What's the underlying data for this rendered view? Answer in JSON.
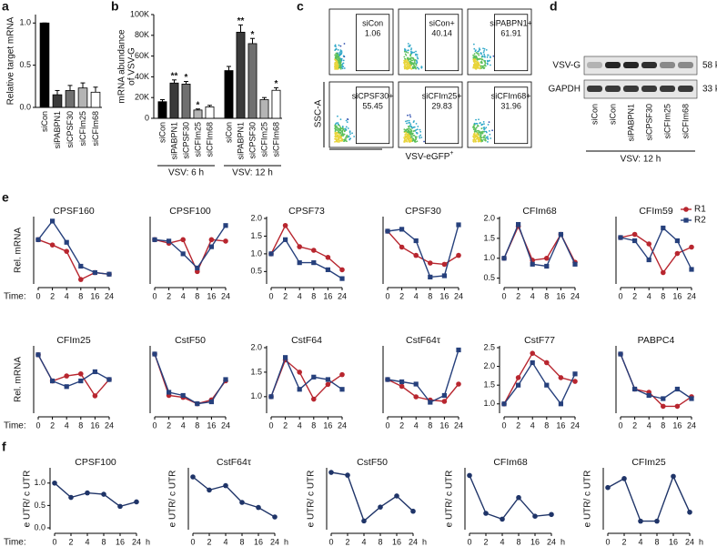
{
  "chart_data": [
    {
      "type": "bar",
      "panel_label": "a",
      "ylabel": "Relative target mRNA",
      "categories": [
        "siCon",
        "siPABPN1",
        "siCPSF30",
        "siCFIm25",
        "siCFIm68"
      ],
      "values": [
        1.0,
        0.15,
        0.2,
        0.23,
        0.18
      ],
      "errors": [
        0,
        0.05,
        0.06,
        0.06,
        0.06
      ],
      "colors": [
        "#000000",
        "#3a3a3a",
        "#707070",
        "#b4b4b4",
        "#ffffff"
      ],
      "ylim": [
        0,
        1.1
      ],
      "yticks": [
        {
          "value": 0,
          "label": "0.0"
        },
        {
          "value": 0.5,
          "label": "0.5"
        },
        {
          "value": 1,
          "label": "1.0"
        }
      ]
    },
    {
      "type": "bar",
      "panel_label": "b",
      "ylabel": [
        "mRNA abundance",
        "of VSV-G"
      ],
      "categories": [
        "siCon",
        "siPABPN1",
        "siCPSF30",
        "siCFIm25",
        "siCFIm68"
      ],
      "colors": [
        "#000000",
        "#3a3a3a",
        "#707070",
        "#b4b4b4",
        "#ffffff"
      ],
      "groups": [
        {
          "name": "VSV: 6 h",
          "values": [
            16000,
            34000,
            33000,
            8000,
            11000
          ],
          "errors": [
            2000,
            3000,
            2500,
            1000,
            1500
          ],
          "annotations": [
            null,
            "**",
            "*",
            "*",
            null
          ]
        },
        {
          "name": "VSV: 12 h",
          "values": [
            46000,
            83000,
            72000,
            18000,
            27000
          ],
          "errors": [
            4000,
            7000,
            5000,
            2000,
            2500
          ],
          "annotations": [
            null,
            "**",
            "*",
            null,
            "*"
          ]
        }
      ],
      "ylim": [
        0,
        100000
      ],
      "yticks": [
        0,
        {
          "value": 20000,
          "label": "20K"
        },
        {
          "value": 40000,
          "label": "40K"
        },
        {
          "value": 60000,
          "label": "60K"
        },
        {
          "value": 80000,
          "label": "80K"
        },
        {
          "value": 100000,
          "label": "100K"
        }
      ]
    },
    {
      "type": "line",
      "panel_label": "e",
      "ylabel": "Rel. mRNA",
      "time_label": "Time:",
      "categories": [
        "0",
        "2",
        "4",
        "8",
        "16",
        "24"
      ],
      "series": [
        {
          "name": "R1",
          "color": "#b8262f",
          "marker": "circle"
        },
        {
          "name": "R2",
          "color": "#26407c",
          "marker": "square"
        }
      ],
      "panels": [
        {
          "title": "CPSF160",
          "ylim": [
            0.2,
            1.4
          ],
          "values": [
            [
              1.0,
              0.9,
              0.78,
              0.25,
              0.38,
              0.35
            ],
            [
              1.0,
              1.35,
              0.95,
              0.5,
              0.38,
              0.35
            ]
          ]
        },
        {
          "title": "CPSF100",
          "ylim": [
            0.4,
            1.3
          ],
          "values": [
            [
              1.0,
              0.95,
              1.0,
              0.55,
              1.0,
              0.98
            ],
            [
              1.0,
              0.98,
              0.8,
              0.6,
              0.9,
              1.2
            ]
          ]
        },
        {
          "title": "CPSF73",
          "ylim": [
            0.2,
            2.0
          ],
          "yticks": [
            {
              "value": 0.5,
              "label": "0.5"
            },
            {
              "value": 1,
              "label": "1.0"
            },
            {
              "value": 1.5,
              "label": "1.5"
            },
            {
              "value": 2,
              "label": "2.0"
            }
          ],
          "values": [
            [
              1.0,
              1.8,
              1.2,
              1.1,
              0.9,
              0.55
            ],
            [
              1.0,
              1.4,
              0.75,
              0.75,
              0.55,
              0.3
            ]
          ]
        },
        {
          "title": "CPSF30",
          "ylim": [
            0.2,
            1.2
          ],
          "values": [
            [
              1.0,
              0.75,
              0.62,
              0.5,
              0.48,
              0.62
            ],
            [
              1.0,
              1.03,
              0.85,
              0.28,
              0.3,
              1.1
            ]
          ]
        },
        {
          "title": "CFIm68",
          "ylim": [
            0.4,
            2.0
          ],
          "yticks": [
            {
              "value": 0.5,
              "label": "0.5"
            },
            {
              "value": 1,
              "label": "1.0"
            },
            {
              "value": 1.5,
              "label": "1.5"
            },
            {
              "value": 2,
              "label": "2.0"
            }
          ],
          "values": [
            [
              1.0,
              1.8,
              0.95,
              1.0,
              1.6,
              0.9
            ],
            [
              1.0,
              1.85,
              0.85,
              0.8,
              1.6,
              0.85
            ]
          ]
        },
        {
          "title": "CFIm59",
          "ylim": [
            0.3,
            1.3
          ],
          "legend": "upper right",
          "values": [
            [
              1.0,
              1.05,
              0.9,
              0.45,
              0.75,
              0.85
            ],
            [
              1.0,
              0.95,
              0.65,
              1.15,
              0.95,
              0.5
            ]
          ]
        },
        {
          "title": "CFIm25",
          "ylim": [
            0.2,
            1.1
          ],
          "values": [
            [
              1.0,
              0.63,
              0.7,
              0.73,
              0.42,
              0.65
            ],
            [
              1.0,
              0.63,
              0.55,
              0.63,
              0.76,
              0.65
            ]
          ]
        },
        {
          "title": "CstF50",
          "ylim": [
            0.1,
            1.1
          ],
          "values": [
            [
              1.0,
              0.35,
              0.32,
              0.22,
              0.28,
              0.58
            ],
            [
              1.0,
              0.4,
              0.35,
              0.22,
              0.25,
              0.6
            ]
          ]
        },
        {
          "title": "CstF64",
          "ylim": [
            0.7,
            2.0
          ],
          "yticks": [
            {
              "value": 1,
              "label": "1.0"
            },
            {
              "value": 1.5,
              "label": "1.5"
            },
            {
              "value": 2,
              "label": "2.0"
            }
          ],
          "values": [
            [
              1.0,
              1.75,
              1.5,
              0.95,
              1.25,
              1.45
            ],
            [
              1.0,
              1.8,
              1.15,
              1.4,
              1.35,
              1.15
            ]
          ]
        },
        {
          "title": "CstF64τ",
          "ylim": [
            0.3,
            1.7
          ],
          "values": [
            [
              1.0,
              0.85,
              0.62,
              0.55,
              0.52,
              0.9
            ],
            [
              1.0,
              0.95,
              0.9,
              0.5,
              0.65,
              1.65
            ]
          ]
        },
        {
          "title": "CstF77",
          "ylim": [
            0.8,
            2.5
          ],
          "yticks": [
            {
              "value": 1,
              "label": "1.0"
            },
            {
              "value": 1.5,
              "label": "1.5"
            },
            {
              "value": 2,
              "label": "2.0"
            },
            {
              "value": 2.5,
              "label": "2.5"
            }
          ],
          "values": [
            [
              1.0,
              1.7,
              2.35,
              2.1,
              1.7,
              1.6
            ],
            [
              1.0,
              1.5,
              2.1,
              1.5,
              1.0,
              1.8
            ]
          ]
        },
        {
          "title": "PABPC4",
          "ylim": [
            0.1,
            1.1
          ],
          "values": [
            [
              1.0,
              0.45,
              0.4,
              0.18,
              0.18,
              0.33
            ],
            [
              1.0,
              0.45,
              0.35,
              0.3,
              0.45,
              0.3
            ]
          ]
        }
      ]
    },
    {
      "type": "line",
      "panel_label": "f",
      "ylabel": "e UTR/ c UTR",
      "time_label": "Time:",
      "unit": "h",
      "categories": [
        "0",
        "2",
        "4",
        "8",
        "16",
        "24"
      ],
      "color": "#1f3468",
      "panels": [
        {
          "title": "CPSF100",
          "ylim": [
            0,
            1.3
          ],
          "yticks": [
            {
              "value": 0,
              "label": "0.0"
            },
            {
              "value": 0.5,
              "label": "0.5"
            },
            {
              "value": 1,
              "label": "1.0"
            }
          ],
          "values": [
            1.0,
            0.68,
            0.78,
            0.75,
            0.48,
            0.58
          ]
        },
        {
          "title": "CstF64τ",
          "ylim": [
            0.3,
            1.1
          ],
          "values": [
            1.0,
            0.82,
            0.88,
            0.65,
            0.58,
            0.45
          ]
        },
        {
          "title": "CstF50",
          "ylim": [
            0.6,
            1.02
          ],
          "values": [
            1.0,
            0.98,
            0.65,
            0.75,
            0.83,
            0.72
          ]
        },
        {
          "title": "CFIm68",
          "ylim": [
            0.1,
            1.1
          ],
          "values": [
            1.0,
            0.35,
            0.25,
            0.62,
            0.3,
            0.33
          ]
        },
        {
          "title": "CFIm25",
          "ylim": [
            0.1,
            1.4
          ],
          "values": [
            1.0,
            1.2,
            0.25,
            0.25,
            1.25,
            0.45
          ]
        }
      ]
    }
  ],
  "flow": {
    "panel_label": "c",
    "ylabel": "SSC-A",
    "xlabel": "VSV-eGFP",
    "xlabel_sup": "+",
    "gates": [
      {
        "label": "siCon",
        "percent": 1.06
      },
      {
        "label": "siCon+",
        "percent": 40.14
      },
      {
        "label": "siPABPN1+",
        "percent": 61.91
      },
      {
        "label": "siCPSF30+",
        "percent": 55.45
      },
      {
        "label": "siCFIm25+",
        "percent": 29.83
      },
      {
        "label": "siCFIm68+",
        "percent": 31.96
      }
    ]
  },
  "blot": {
    "panel_label": "d",
    "rows": [
      {
        "label": "VSV-G",
        "size": "58 kDa"
      },
      {
        "label": "GAPDH",
        "size": "33 kDa"
      }
    ],
    "lanes": [
      "siCon",
      "siCon",
      "siPABPN1",
      "siCPSF30",
      "siCFIm25",
      "siCFIm68"
    ],
    "group": "VSV: 12 h"
  }
}
